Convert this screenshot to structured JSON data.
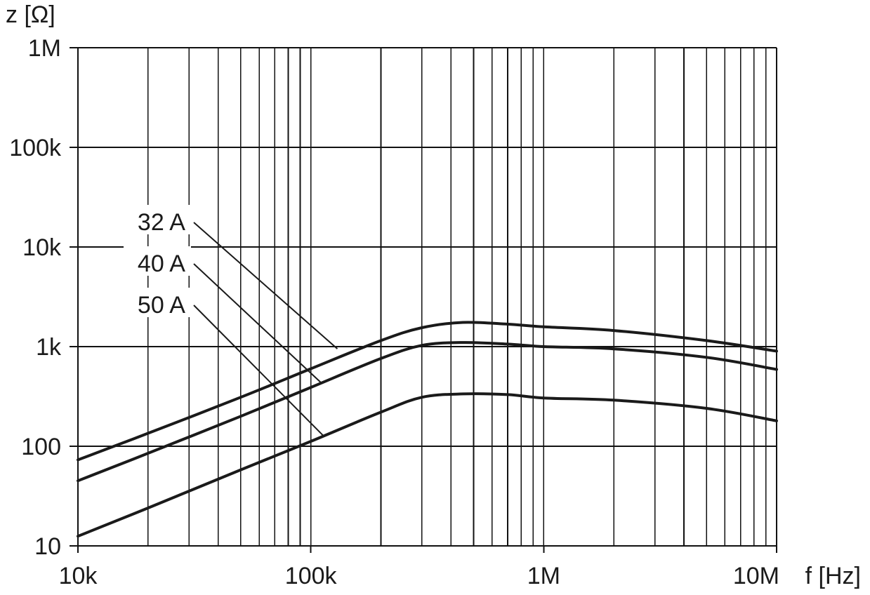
{
  "chart_data": {
    "type": "line",
    "xscale": "log",
    "yscale": "log",
    "xlim": [
      10000,
      10000000
    ],
    "ylim": [
      10,
      1000000
    ],
    "xlabel": "f [Hz]",
    "ylabel": "z [Ω]",
    "grid": true,
    "x_ticks": [
      {
        "value": 10000,
        "label": "10k"
      },
      {
        "value": 100000,
        "label": "100k"
      },
      {
        "value": 1000000,
        "label": "1M"
      },
      {
        "value": 10000000,
        "label": "10M"
      }
    ],
    "y_ticks": [
      {
        "value": 10,
        "label": "10"
      },
      {
        "value": 100,
        "label": "100"
      },
      {
        "value": 1000,
        "label": "1k"
      },
      {
        "value": 10000,
        "label": "10k"
      },
      {
        "value": 100000,
        "label": "100k"
      },
      {
        "value": 1000000,
        "label": "1M"
      }
    ],
    "series": [
      {
        "name": "32 A",
        "x": [
          10000,
          20000,
          50000,
          100000,
          200000,
          300000,
          450000,
          700000,
          1000000,
          2000000,
          5000000,
          10000000
        ],
        "y": [
          73,
          135,
          310,
          600,
          1150,
          1550,
          1750,
          1680,
          1580,
          1450,
          1150,
          900
        ]
      },
      {
        "name": "40 A",
        "x": [
          10000,
          20000,
          50000,
          100000,
          200000,
          300000,
          450000,
          700000,
          1000000,
          2000000,
          5000000,
          10000000
        ],
        "y": [
          45,
          85,
          200,
          390,
          760,
          1030,
          1100,
          1060,
          1000,
          950,
          780,
          590
        ]
      },
      {
        "name": "50 A",
        "x": [
          10000,
          20000,
          50000,
          100000,
          200000,
          300000,
          450000,
          700000,
          1000000,
          2000000,
          5000000,
          10000000
        ],
        "y": [
          12.5,
          24,
          58,
          112,
          220,
          310,
          335,
          330,
          305,
          290,
          240,
          180
        ]
      }
    ]
  }
}
